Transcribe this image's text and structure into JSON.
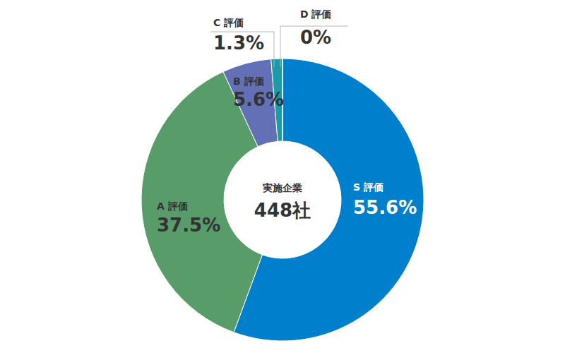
{
  "chart_data": {
    "type": "pie",
    "categories": [
      "S 評価",
      "A 評価",
      "B 評価",
      "C 評価",
      "D 評価"
    ],
    "values": [
      55.6,
      37.5,
      5.6,
      1.3,
      0
    ],
    "value_labels": [
      "55.6%",
      "37.5%",
      "5.6%",
      "1.3%",
      "0%"
    ],
    "colors": [
      "#0080cc",
      "#579c69",
      "#6370b6",
      "#1c9aa8",
      "#8c8c8c"
    ],
    "data_labels": true,
    "center_title": "実施企業",
    "total": {
      "value": 448,
      "label": "448社"
    }
  }
}
